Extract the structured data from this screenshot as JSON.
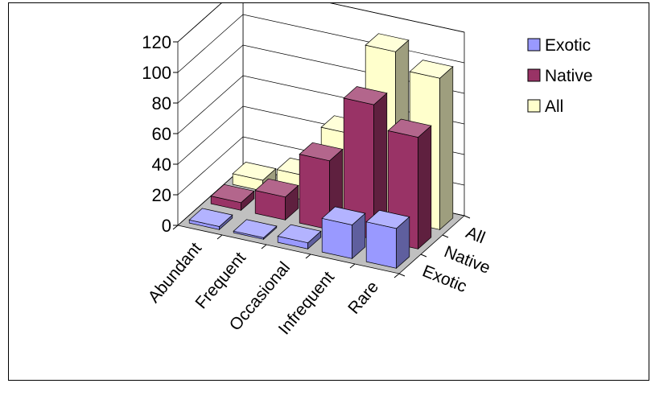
{
  "chart_data": {
    "type": "bar",
    "variant": "3d-column",
    "categories": [
      "Abundant",
      "Frequent",
      "Occasional",
      "Infrequent",
      "Rare"
    ],
    "series": [
      {
        "name": "Exotic",
        "values": [
          2,
          1,
          4,
          22,
          26
        ],
        "color": "#9999ff"
      },
      {
        "name": "Native",
        "values": [
          5,
          15,
          45,
          88,
          73
        ],
        "color": "#993366"
      },
      {
        "name": "All",
        "values": [
          7,
          16,
          50,
          110,
          99
        ],
        "color": "#ffffcc"
      }
    ],
    "depth_labels": [
      "All",
      "Native",
      "Exotic"
    ],
    "yticks": [
      0,
      20,
      40,
      60,
      80,
      100,
      120
    ],
    "ylim": [
      0,
      120
    ],
    "legend": {
      "position": "top-right",
      "entries": [
        "Exotic",
        "Native",
        "All"
      ]
    },
    "grid": true,
    "title": "",
    "xlabel": "",
    "ylabel": ""
  }
}
